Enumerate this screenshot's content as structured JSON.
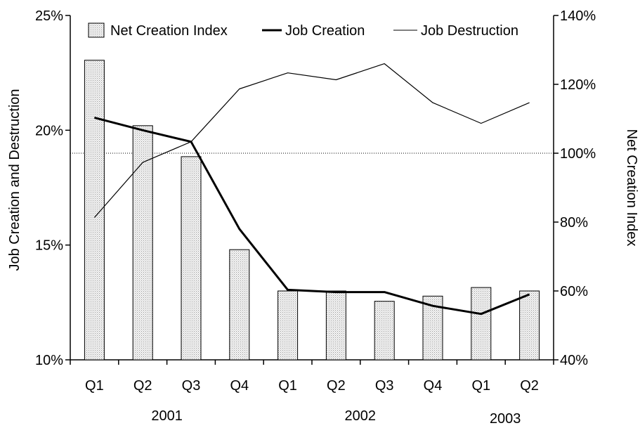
{
  "chart_data": {
    "type": "bar+line",
    "categories": [
      "Q1",
      "Q2",
      "Q3",
      "Q4",
      "Q1",
      "Q2",
      "Q3",
      "Q4",
      "Q1",
      "Q2"
    ],
    "year_labels": [
      {
        "label": "2001",
        "category_index": 1.5
      },
      {
        "label": "2002",
        "category_index": 5.5
      },
      {
        "label": "2003",
        "category_index": 8.5
      }
    ],
    "ylabel_left": "Job Creation and Destruction",
    "ylabel_right": "Net Creation Index",
    "ylim_left": [
      10,
      25
    ],
    "ylim_right": [
      40,
      140
    ],
    "yticks_left": [
      "10%",
      "15%",
      "20%",
      "25%"
    ],
    "yticks_left_values": [
      10,
      15,
      20,
      25
    ],
    "yticks_right": [
      "40%",
      "60%",
      "80%",
      "100%",
      "120%",
      "140%"
    ],
    "yticks_right_values": [
      40,
      60,
      80,
      100,
      120,
      140
    ],
    "reference_line_right": 100,
    "legend_position": "top",
    "series": [
      {
        "name": "Net Creation Index",
        "kind": "bar",
        "axis": "right",
        "values": [
          127,
          108,
          99,
          72,
          60,
          60,
          57,
          58.5,
          61,
          60
        ]
      },
      {
        "name": "Job Creation",
        "kind": "line",
        "axis": "left",
        "style": "thick",
        "values": [
          20.55,
          20.0,
          19.5,
          15.7,
          13.05,
          12.95,
          12.95,
          12.35,
          12.0,
          12.85
        ]
      },
      {
        "name": "Job Destruction",
        "kind": "line",
        "axis": "left",
        "style": "thin",
        "values": [
          16.2,
          18.6,
          19.5,
          21.8,
          22.5,
          22.2,
          22.9,
          21.2,
          20.3,
          21.2
        ]
      }
    ]
  }
}
